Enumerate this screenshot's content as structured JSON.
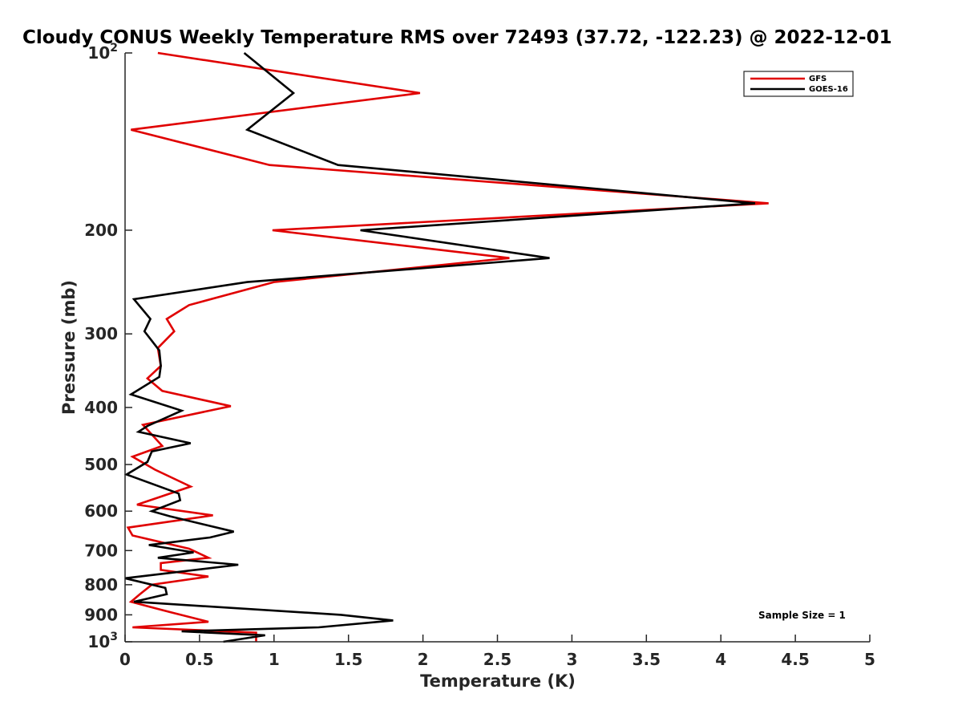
{
  "chart_data": {
    "type": "line",
    "title": "Cloudy CONUS Weekly Temperature RMS over 72493 (37.72, -122.23) @ 2022-12-01",
    "xlabel": "Temperature (K)",
    "ylabel": "Pressure (mb)",
    "xlim": [
      0,
      5
    ],
    "ylim": [
      100,
      1000
    ],
    "yscale": "log",
    "y_reversed": true,
    "grid": false,
    "legend": "top-right",
    "xticks": [
      0,
      0.5,
      1,
      1.5,
      2,
      2.5,
      3,
      3.5,
      4,
      4.5,
      5
    ],
    "xtick_labels": [
      "0",
      "0.5",
      "1",
      "1.5",
      "2",
      "2.5",
      "3",
      "3.5",
      "4",
      "4.5",
      "5"
    ],
    "yticks": [
      100,
      200,
      300,
      400,
      500,
      600,
      700,
      800,
      900,
      1000
    ],
    "ytick_labels": [
      {
        "base": "10",
        "exp": "2"
      },
      {
        "base": "200"
      },
      {
        "base": "300"
      },
      {
        "base": "400"
      },
      {
        "base": "500"
      },
      {
        "base": "600"
      },
      {
        "base": "700"
      },
      {
        "base": "800"
      },
      {
        "base": "900"
      },
      {
        "base": "10",
        "exp": "3"
      }
    ],
    "annotation": "Sample Size = 1",
    "series": [
      {
        "name": "GFS",
        "color": "#e00000",
        "points": [
          [
            0.22,
            100
          ],
          [
            1.98,
            117
          ],
          [
            0.04,
            135
          ],
          [
            0.97,
            155
          ],
          [
            4.32,
            180
          ],
          [
            0.99,
            200
          ],
          [
            2.58,
            223
          ],
          [
            1.0,
            245
          ],
          [
            0.43,
            268
          ],
          [
            0.28,
            283
          ],
          [
            0.33,
            297
          ],
          [
            0.22,
            317
          ],
          [
            0.24,
            340
          ],
          [
            0.15,
            357
          ],
          [
            0.25,
            375
          ],
          [
            0.71,
            398
          ],
          [
            0.12,
            428
          ],
          [
            0.25,
            465
          ],
          [
            0.05,
            485
          ],
          [
            0.2,
            510
          ],
          [
            0.44,
            545
          ],
          [
            0.08,
            585
          ],
          [
            0.59,
            610
          ],
          [
            0.02,
            640
          ],
          [
            0.05,
            660
          ],
          [
            0.43,
            695
          ],
          [
            0.56,
            720
          ],
          [
            0.24,
            735
          ],
          [
            0.24,
            755
          ],
          [
            0.56,
            775
          ],
          [
            0.18,
            800
          ],
          [
            0.1,
            830
          ],
          [
            0.04,
            855
          ],
          [
            0.15,
            870
          ],
          [
            0.3,
            890
          ],
          [
            0.56,
            925
          ],
          [
            0.05,
            945
          ],
          [
            0.88,
            965
          ],
          [
            0.88,
            1000
          ]
        ]
      },
      {
        "name": "GOES-16",
        "color": "#000000",
        "points": [
          [
            0.8,
            100
          ],
          [
            1.13,
            117
          ],
          [
            0.82,
            135
          ],
          [
            1.43,
            155
          ],
          [
            4.23,
            180
          ],
          [
            1.58,
            200
          ],
          [
            2.85,
            223
          ],
          [
            0.82,
            245
          ],
          [
            0.06,
            262
          ],
          [
            0.17,
            283
          ],
          [
            0.13,
            297
          ],
          [
            0.23,
            320
          ],
          [
            0.24,
            340
          ],
          [
            0.23,
            355
          ],
          [
            0.04,
            380
          ],
          [
            0.38,
            405
          ],
          [
            0.15,
            430
          ],
          [
            0.09,
            440
          ],
          [
            0.44,
            460
          ],
          [
            0.18,
            475
          ],
          [
            0.15,
            495
          ],
          [
            0.01,
            520
          ],
          [
            0.36,
            560
          ],
          [
            0.37,
            575
          ],
          [
            0.18,
            600
          ],
          [
            0.3,
            612
          ],
          [
            0.73,
            650
          ],
          [
            0.57,
            665
          ],
          [
            0.16,
            685
          ],
          [
            0.46,
            705
          ],
          [
            0.22,
            720
          ],
          [
            0.76,
            740
          ],
          [
            0.0,
            780
          ],
          [
            0.27,
            810
          ],
          [
            0.28,
            830
          ],
          [
            0.06,
            855
          ],
          [
            1.45,
            900
          ],
          [
            1.8,
            920
          ],
          [
            1.3,
            945
          ],
          [
            0.38,
            960
          ],
          [
            0.94,
            975
          ],
          [
            0.66,
            1000
          ]
        ]
      }
    ]
  }
}
